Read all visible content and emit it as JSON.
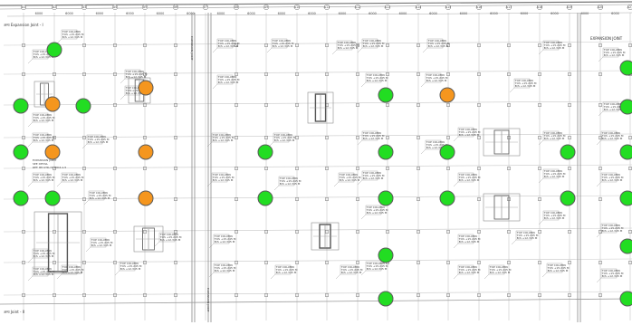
{
  "drawing": {
    "label_top_left": "अन्य Expansion Joint - I",
    "label_bottom_left": "अन्य Joint - II",
    "label_top_right": "EXPANSION JOINT",
    "expansion_note": [
      "EXPANSION JOINT",
      "SEE DETAIL",
      "REF. BE-STR-72 4004 A-5"
    ],
    "vertical_label_1": "EXPANSION JOINT",
    "vertical_label_2": "EXPANSION JOINT",
    "callout_lines": [
      "TOP COLUMN",
      "TOS +15.245 M",
      "B/S +12.345 M"
    ]
  },
  "grid": {
    "column_labels": [
      "A1",
      "A2",
      "A3",
      "A4",
      "A5",
      "A6",
      "A7",
      "A8",
      "A9",
      "A10",
      "A11",
      "A12",
      "A13",
      "A14",
      "A15",
      "A16",
      "A17",
      "A18",
      "A19",
      "A20",
      "A21",
      "A22"
    ],
    "dimension_labels": [
      "6000",
      "6000",
      "6000",
      "6000",
      "6000",
      "6000",
      "6000",
      "6000",
      "6000",
      "6000",
      "6000",
      "6000",
      "6000",
      "6000",
      "6000",
      "6000",
      "6000",
      "6000",
      "6000",
      "6000",
      "6000"
    ]
  },
  "markers": {
    "colors": {
      "ok": "#22dd22",
      "warning": "#f5961e",
      "stroke": "#5a5a5a"
    },
    "items": [
      {
        "status": "ok"
      },
      {
        "status": "ok"
      },
      {
        "status": "ok"
      },
      {
        "status": "ok"
      },
      {
        "status": "ok"
      },
      {
        "status": "ok"
      },
      {
        "status": "ok"
      },
      {
        "status": "ok"
      },
      {
        "status": "ok"
      },
      {
        "status": "ok"
      },
      {
        "status": "ok"
      },
      {
        "status": "ok"
      },
      {
        "status": "ok"
      },
      {
        "status": "ok"
      },
      {
        "status": "ok"
      },
      {
        "status": "ok"
      },
      {
        "status": "ok"
      },
      {
        "status": "ok"
      },
      {
        "status": "ok"
      },
      {
        "status": "ok"
      },
      {
        "status": "ok"
      },
      {
        "status": "ok"
      },
      {
        "status": "ok"
      },
      {
        "status": "warning"
      },
      {
        "status": "warning"
      },
      {
        "status": "warning"
      },
      {
        "status": "warning"
      },
      {
        "status": "warning"
      },
      {
        "status": "warning"
      }
    ]
  }
}
